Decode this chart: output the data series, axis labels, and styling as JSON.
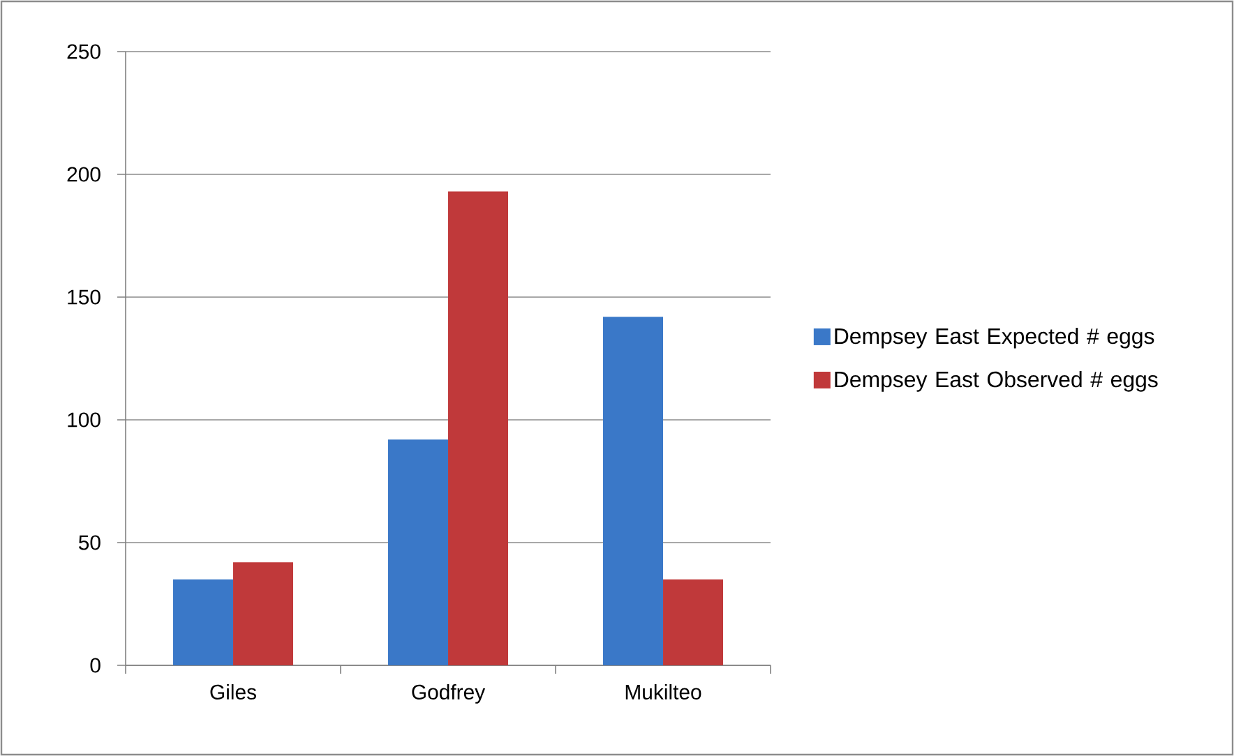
{
  "chart_data": {
    "type": "bar",
    "categories": [
      "Giles",
      "Godfrey",
      "Mukilteo"
    ],
    "series": [
      {
        "name": "Dempsey East Expected # eggs",
        "color": "#3a78c8",
        "values": [
          35,
          92,
          142
        ]
      },
      {
        "name": "Dempsey East Observed # eggs",
        "color": "#c0393a",
        "values": [
          42,
          193,
          35
        ]
      }
    ],
    "ylim": [
      0,
      250
    ],
    "yticks": [
      0,
      50,
      100,
      150,
      200,
      250
    ],
    "grid": "y",
    "legend": "right"
  }
}
